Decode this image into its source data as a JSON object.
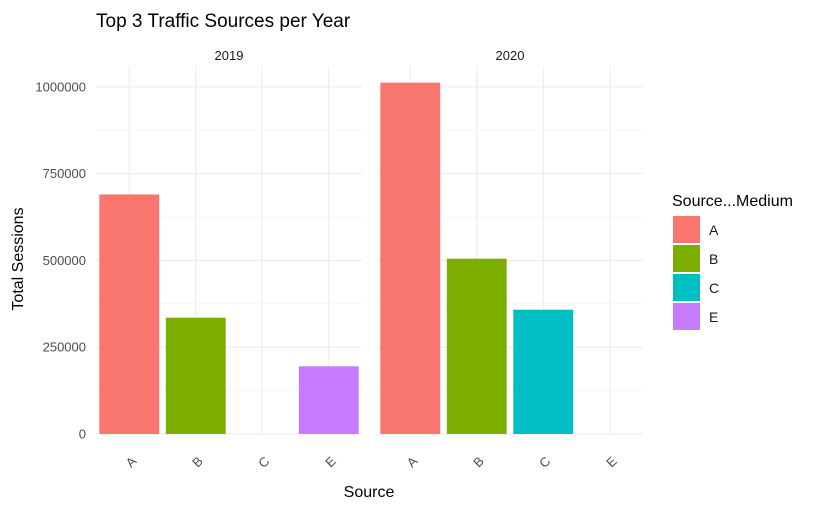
{
  "chart_data": {
    "type": "bar",
    "title": "Top 3 Traffic Sources per Year",
    "xlabel": "Source",
    "ylabel": "Total Sessions",
    "ylim": [
      0,
      1060000
    ],
    "yticks": [
      0,
      250000,
      500000,
      750000,
      1000000
    ],
    "ytick_labels": [
      "0",
      "250000",
      "500000",
      "750000",
      "1000000"
    ],
    "categories": [
      "A",
      "B",
      "C",
      "E"
    ],
    "grid": true,
    "legend": {
      "title": "Source...Medium",
      "position": "right",
      "entries": [
        {
          "label": "A",
          "color": "#F8766D"
        },
        {
          "label": "B",
          "color": "#7CAE00"
        },
        {
          "label": "C",
          "color": "#00BFC4"
        },
        {
          "label": "E",
          "color": "#C77CFF"
        }
      ]
    },
    "facets": [
      {
        "label": "2019",
        "values": [
          690000,
          335000,
          null,
          195000
        ]
      },
      {
        "label": "2020",
        "values": [
          1012000,
          505000,
          358000,
          null
        ]
      }
    ]
  }
}
